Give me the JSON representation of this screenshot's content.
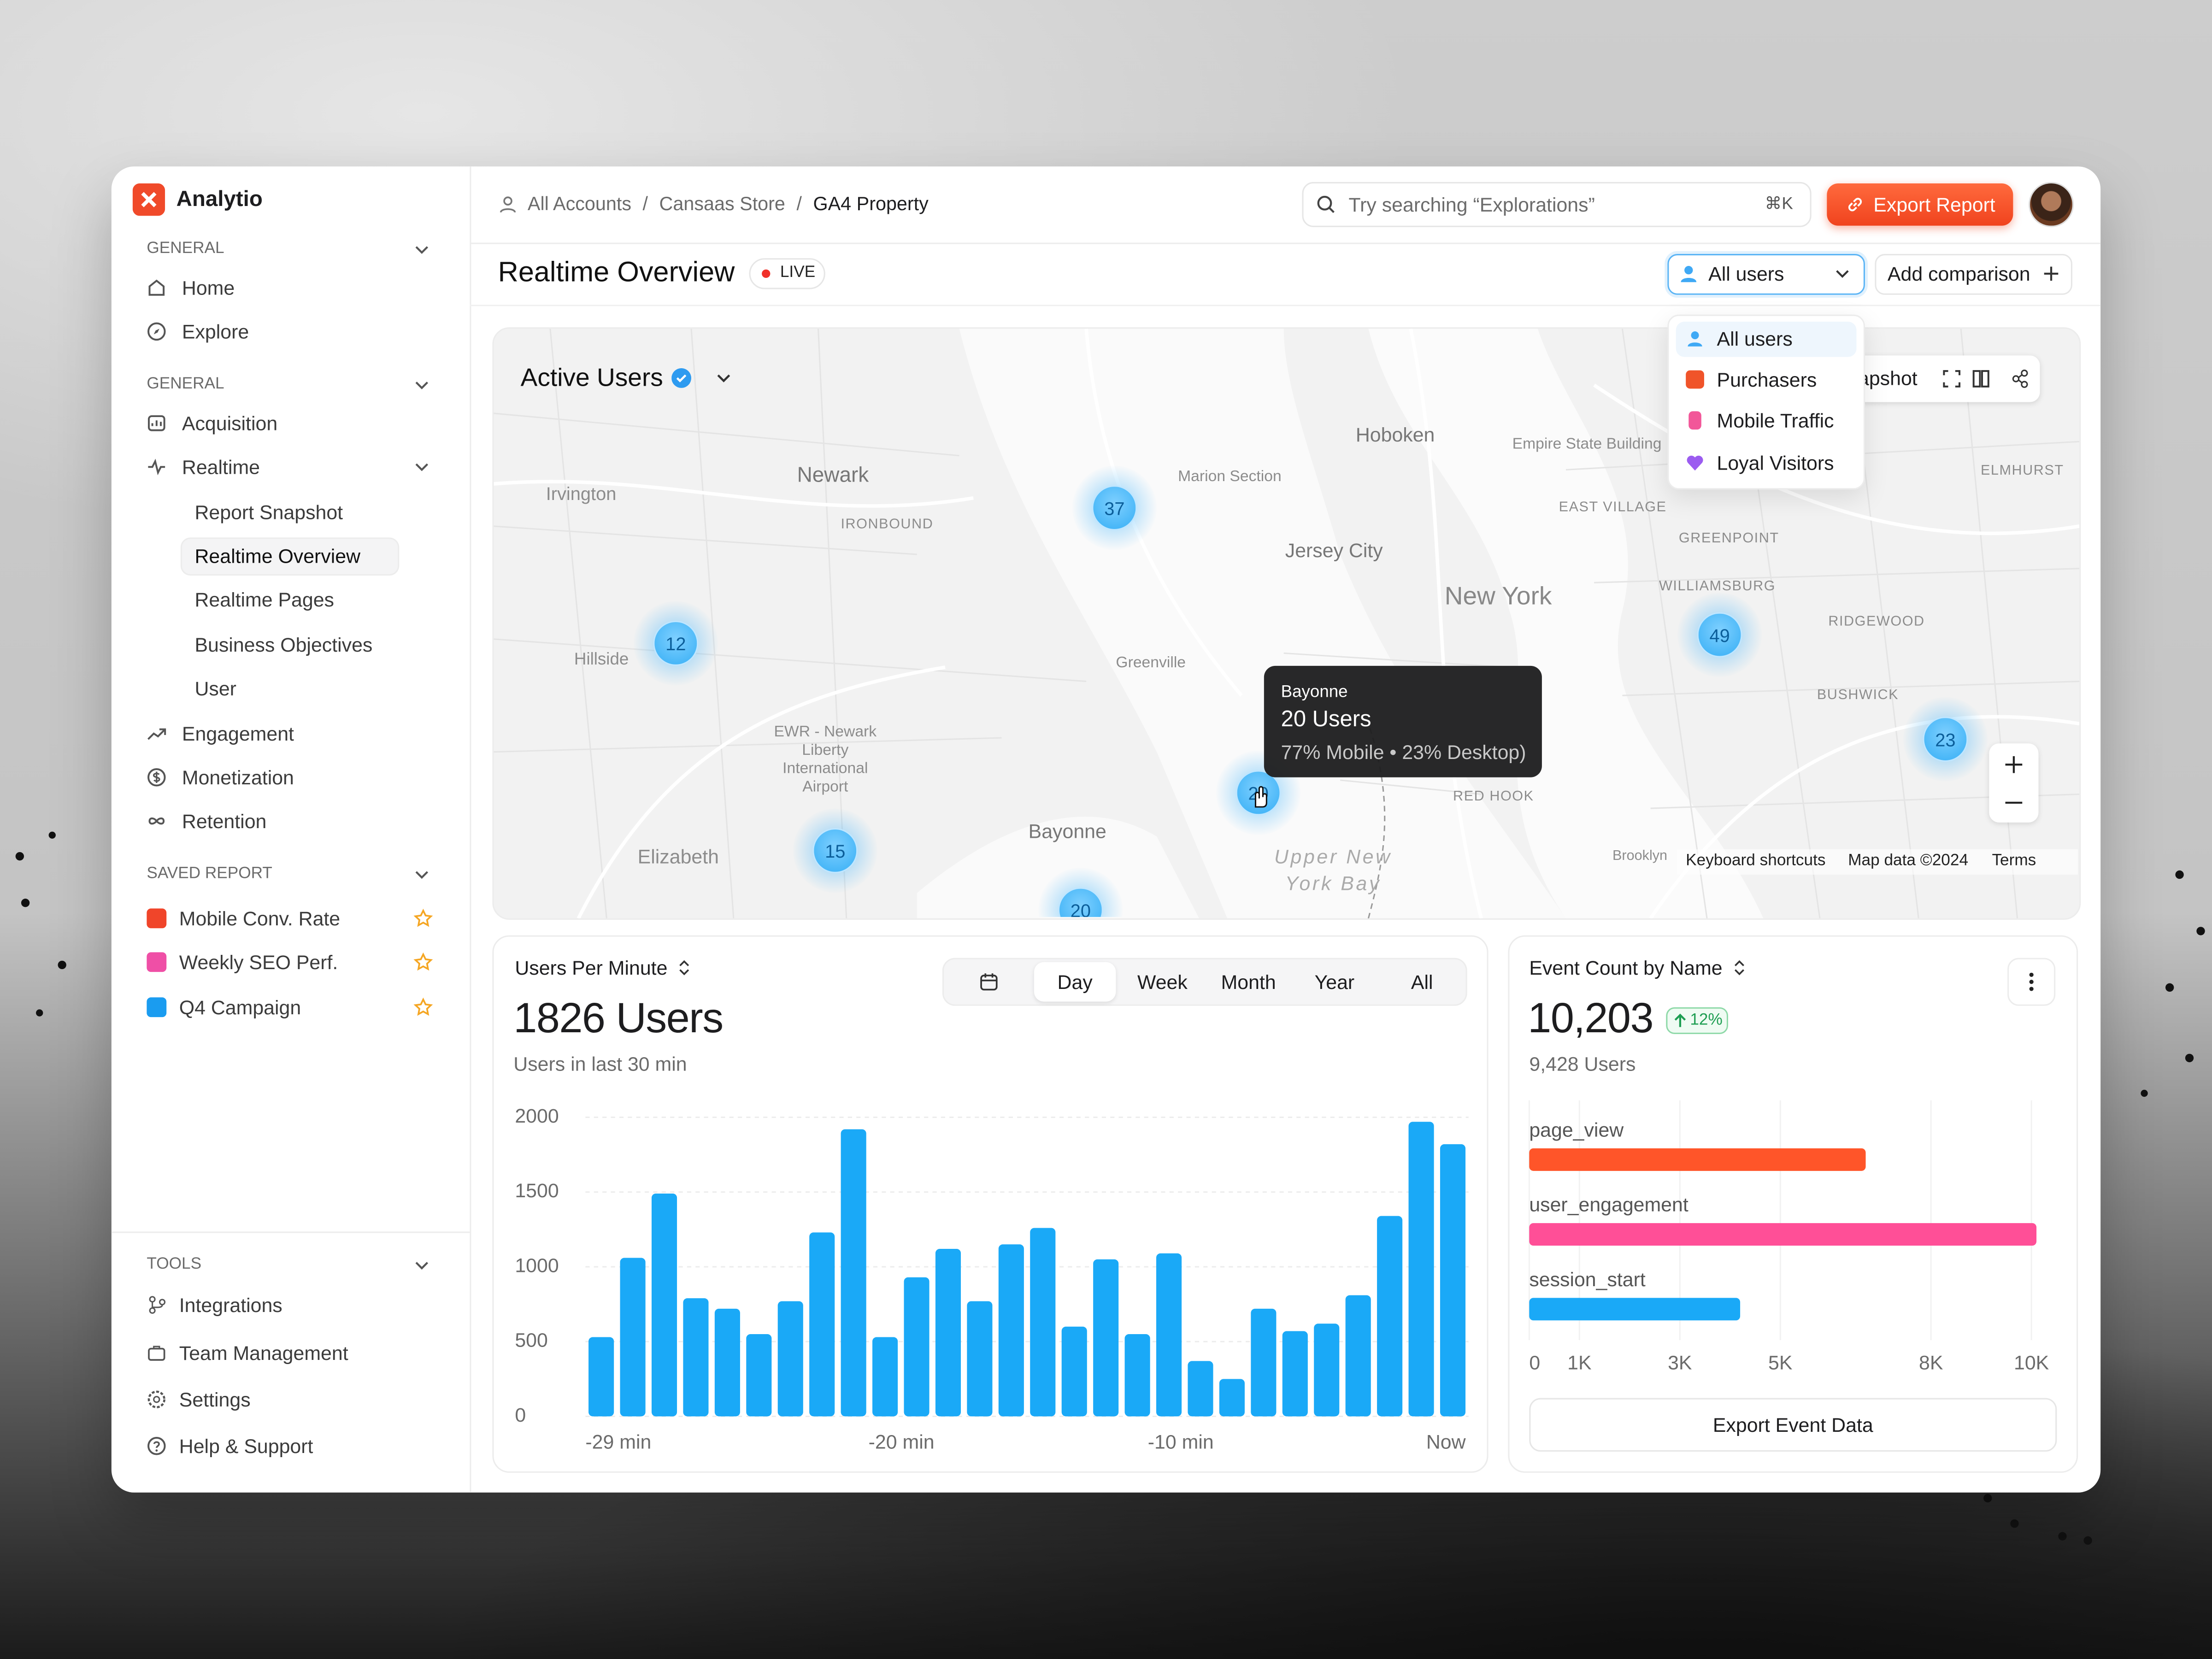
{
  "brand": "Analytio",
  "sidebar": {
    "general": {
      "title": "GENERAL",
      "items": [
        "Home",
        "Explore"
      ]
    },
    "reports": {
      "title": "GENERAL",
      "items": [
        "Acquisition",
        "Realtime",
        "Engagement",
        "Monetization",
        "Retention"
      ],
      "realtime_children": [
        "Report Snapshot",
        "Realtime Overview",
        "Realtime Pages",
        "Business Objectives",
        "User"
      ]
    },
    "saved": {
      "title": "SAVED REPORT",
      "items": [
        "Mobile Conv. Rate",
        "Weekly SEO Perf.",
        "Q4 Campaign"
      ]
    },
    "tools": {
      "title": "TOOLS",
      "items": [
        "Integrations",
        "Team Management",
        "Settings",
        "Help & Support"
      ]
    }
  },
  "header": {
    "breadcrumb": [
      "All Accounts",
      "Cansaas Store",
      "GA4 Property"
    ],
    "search_placeholder": "Try searching “Explorations”",
    "shortcut": "⌘K",
    "export": "Export Report"
  },
  "toolbar": {
    "title": "Realtime Overview",
    "live": "LIVE",
    "segment": "All users",
    "segment_options": [
      "All users",
      "Purchasers",
      "Mobile Traffic",
      "Loyal Visitors"
    ],
    "add_comparison": "Add comparison"
  },
  "map": {
    "title": "Active Users",
    "snapshot": "Snapshot",
    "places": [
      "Irvington",
      "Newark",
      "IRONBOUND",
      "Hoboken",
      "Marion Section",
      "Jersey City",
      "New York",
      "Empire State Building",
      "EAST VILLAGE",
      "GREENPOINT",
      "WILLIAMSBURG",
      "RIDGEWOOD",
      "BUSHWICK",
      "ELMHURST",
      "Hillside",
      "Greenville",
      "EWR - Newark Liberty International Airport",
      "Elizabeth",
      "Bayonne",
      "Upper New York Bay",
      "RED HOOK",
      "Brooklyn"
    ],
    "clusters": [
      37,
      12,
      49,
      23,
      15,
      20,
      20
    ],
    "tooltip": {
      "place": "Bayonne",
      "users": "20 Users",
      "split": "77% Mobile • 23% Desktop)"
    },
    "attribution": [
      "Keyboard shortcuts",
      "Map data ©2024",
      "Terms"
    ]
  },
  "users_per_minute": {
    "title": "Users Per Minute",
    "total": "1826 Users",
    "subtitle": "Users in last 30 min",
    "ranges": [
      "Day",
      "Week",
      "Month",
      "Year",
      "All"
    ],
    "chart": {
      "type": "bar",
      "color": "#1aa9f7",
      "grid": true,
      "values": [
        530,
        1060,
        1490,
        790,
        720,
        550,
        770,
        1230,
        1920,
        530,
        930,
        1120,
        770,
        1150,
        1260,
        600,
        1050,
        550,
        1090,
        370,
        250,
        720,
        570,
        620,
        810,
        1340,
        1970,
        1820
      ],
      "ylim": [
        0,
        2000
      ],
      "yticks": [
        0,
        500,
        1000,
        1500,
        2000
      ],
      "x_labels": [
        "-29 min",
        "-20 min",
        "-10 min",
        "Now"
      ]
    }
  },
  "event_count": {
    "title": "Event Count by Name",
    "total": "10,203",
    "change": "12%",
    "users": "9,428 Users",
    "chart": {
      "type": "bar",
      "orientation": "horizontal",
      "categories": [
        "page_view",
        "user_engagement",
        "session_start"
      ],
      "values": [
        6700,
        10100,
        4200
      ],
      "colors": [
        "#ff5529",
        "#ff4f97",
        "#1aa9f7"
      ],
      "xlim": [
        0,
        10000
      ],
      "xticks": [
        0,
        {
          "value": 1000,
          "label": "1K"
        },
        {
          "value": 3000,
          "label": "3K"
        },
        {
          "value": 5000,
          "label": "5K"
        },
        {
          "value": 8000,
          "label": "8K"
        },
        {
          "value": 10000,
          "label": "10K"
        }
      ]
    },
    "button": "Export Event Data"
  }
}
